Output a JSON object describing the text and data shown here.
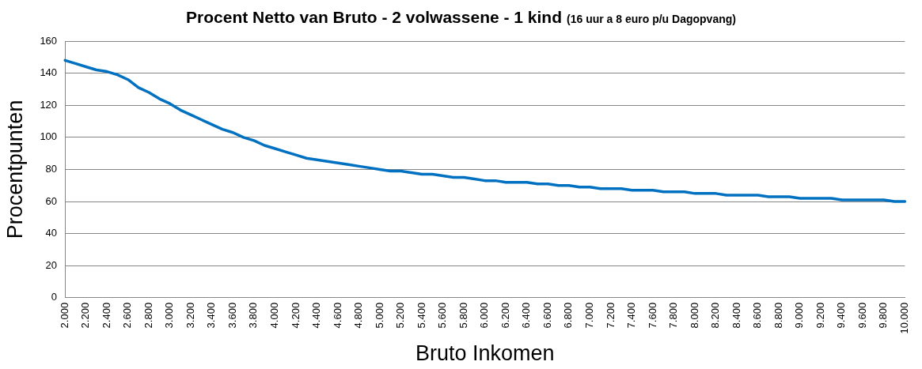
{
  "chart_data": {
    "type": "line",
    "title": "Procent Netto van Bruto - 2 volwassene - 1 kind",
    "subtitle": "(16 uur a 8 euro p/u Dagopvang)",
    "xlabel": "Bruto Inkomen",
    "ylabel": "Procentpunten",
    "categories": [
      "2.000",
      null,
      "2.200",
      null,
      "2.400",
      null,
      "2.600",
      null,
      "2.800",
      null,
      "3.000",
      null,
      "3.200",
      null,
      "3.400",
      null,
      "3.600",
      null,
      "3.800",
      null,
      "4.000",
      null,
      "4.200",
      null,
      "4.400",
      null,
      "4.600",
      null,
      "4.800",
      null,
      "5.000",
      null,
      "5.200",
      null,
      "5.400",
      null,
      "5.600",
      null,
      "5.800",
      null,
      "6.000",
      null,
      "6.200",
      null,
      "6.400",
      null,
      "6.600",
      null,
      "6.800",
      null,
      "7.000",
      null,
      "7.200",
      null,
      "7.400",
      null,
      "7.600",
      null,
      "7.800",
      null,
      "8.000",
      null,
      "8.200",
      null,
      "8.400",
      null,
      "8.600",
      null,
      "8.800",
      null,
      "9.000",
      null,
      "9.200",
      null,
      "9.400",
      null,
      "9.600",
      null,
      "9.800",
      null,
      "10.000"
    ],
    "series": [
      {
        "color": "#0070c0",
        "values": [
          148,
          146,
          144,
          142,
          141,
          139,
          136,
          131,
          128,
          124,
          121,
          117,
          114,
          111,
          108,
          105,
          103,
          100,
          98,
          95,
          93,
          91,
          89,
          87,
          86,
          85,
          84,
          83,
          82,
          81,
          80,
          79,
          79,
          78,
          77,
          77,
          76,
          75,
          75,
          74,
          73,
          73,
          72,
          72,
          72,
          71,
          71,
          70,
          70,
          69,
          69,
          68,
          68,
          68,
          67,
          67,
          67,
          66,
          66,
          66,
          65,
          65,
          65,
          64,
          64,
          64,
          64,
          63,
          63,
          63,
          62,
          62,
          62,
          62,
          61,
          61,
          61,
          61,
          61,
          60,
          60
        ]
      }
    ],
    "ylim": [
      0,
      160
    ],
    "yticks": [
      0,
      20,
      40,
      60,
      80,
      100,
      120,
      140,
      160
    ],
    "grid": "y",
    "marker": "none"
  }
}
